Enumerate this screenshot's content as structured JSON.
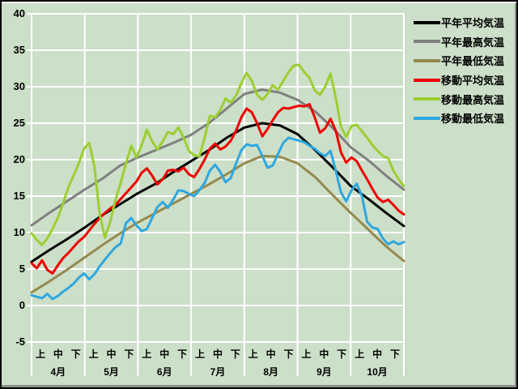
{
  "chart": {
    "background_color": "#CCDFC8",
    "grid_color": "#FFFFFF",
    "y_axis": {
      "tick_labels": [
        "40",
        "35",
        "30",
        "25",
        "20",
        "15",
        "10",
        "5",
        "0",
        "-5"
      ]
    },
    "x_axis": {
      "period_labels": [
        "上",
        "中",
        "下"
      ],
      "month_labels": [
        "4月",
        "5月",
        "6月",
        "7月",
        "8月",
        "9月",
        "10月"
      ]
    }
  },
  "chart_data": {
    "type": "line",
    "title": "",
    "xlabel": "",
    "ylabel": "",
    "x_range": "4月上旬〜10月下旬 (Apr 1 – Oct 31)",
    "ylim": [
      -5,
      40
    ],
    "y_step": 5,
    "grid": "on",
    "legend_position": "top-right",
    "series": [
      {
        "name": "平年平均気温",
        "color": "#000000",
        "style": "smooth",
        "values": [
          6.0,
          7.6,
          9.1,
          10.7,
          12.4,
          13.9,
          15.4,
          16.7,
          18.3,
          19.8,
          21.3,
          23.0,
          24.4,
          25.0,
          24.7,
          23.5,
          21.3,
          18.9,
          16.4,
          14.6,
          12.7,
          10.9
        ]
      },
      {
        "name": "平年最高気温",
        "color": "#808080",
        "style": "smooth",
        "values": [
          11.0,
          12.7,
          14.3,
          15.9,
          17.4,
          19.2,
          20.3,
          21.3,
          22.3,
          23.4,
          25.0,
          27.0,
          29.0,
          29.6,
          29.2,
          28.2,
          26.6,
          24.3,
          21.7,
          19.9,
          17.8,
          15.9
        ]
      },
      {
        "name": "平年最低気温",
        "color": "#95894F",
        "style": "smooth",
        "values": [
          1.8,
          3.3,
          4.9,
          6.6,
          8.3,
          9.9,
          11.4,
          12.7,
          14.0,
          15.3,
          16.6,
          18.0,
          19.5,
          20.5,
          20.4,
          19.5,
          17.6,
          15.1,
          12.7,
          10.4,
          8.1,
          6.1
        ]
      },
      {
        "name": "移動平均気温",
        "color": "#EE0000",
        "style": "daily",
        "values": [
          5.8,
          5.1,
          6.2,
          4.9,
          4.4,
          5.5,
          6.5,
          7.2,
          8.0,
          8.8,
          9.4,
          10.3,
          11.2,
          12.0,
          12.7,
          13.3,
          13.8,
          14.6,
          15.4,
          16.2,
          17.0,
          18.2,
          18.8,
          17.8,
          16.6,
          17.3,
          18.5,
          18.6,
          18.4,
          18.9,
          18.0,
          17.6,
          18.7,
          20.0,
          21.5,
          22.2,
          21.4,
          21.8,
          22.6,
          24.0,
          25.8,
          27.0,
          26.5,
          25.0,
          23.2,
          24.2,
          25.4,
          26.5,
          27.1,
          27.0,
          27.2,
          27.4,
          27.3,
          27.6,
          25.8,
          23.7,
          24.3,
          25.6,
          24.0,
          21.0,
          19.6,
          20.3,
          19.8,
          18.5,
          17.3,
          16.0,
          14.8,
          14.2,
          14.5,
          13.8,
          13.0,
          12.5
        ]
      },
      {
        "name": "移動最高気温",
        "color": "#9CCE32",
        "style": "daily",
        "values": [
          9.9,
          9.0,
          8.3,
          9.2,
          10.5,
          12.0,
          14.0,
          16.2,
          17.8,
          19.5,
          21.5,
          22.3,
          19.0,
          12.5,
          9.3,
          11.5,
          14.5,
          16.8,
          19.5,
          21.9,
          20.3,
          22.0,
          24.1,
          22.5,
          21.4,
          22.5,
          23.8,
          23.5,
          24.4,
          23.0,
          21.2,
          20.6,
          20.4,
          23.0,
          26.0,
          25.8,
          26.8,
          28.4,
          27.8,
          28.8,
          30.5,
          31.9,
          30.8,
          28.9,
          28.2,
          29.0,
          30.2,
          29.6,
          30.8,
          32.0,
          32.9,
          33.0,
          32.0,
          31.2,
          29.5,
          28.9,
          30.0,
          31.8,
          28.5,
          24.5,
          23.1,
          24.6,
          24.8,
          23.9,
          23.0,
          22.0,
          21.2,
          20.5,
          20.2,
          18.5,
          17.3,
          16.4
        ]
      },
      {
        "name": "移動最低気温",
        "color": "#2EA7E0",
        "style": "daily",
        "values": [
          1.4,
          1.2,
          1.0,
          1.6,
          0.9,
          1.3,
          1.9,
          2.4,
          3.0,
          3.8,
          4.4,
          3.6,
          4.3,
          5.4,
          6.3,
          7.2,
          8.0,
          8.5,
          11.3,
          12.0,
          11.0,
          10.2,
          10.5,
          12.0,
          13.5,
          14.2,
          13.4,
          14.5,
          15.8,
          15.7,
          15.3,
          15.0,
          15.8,
          16.8,
          18.5,
          19.3,
          18.3,
          16.9,
          17.5,
          19.5,
          21.3,
          22.1,
          21.9,
          22.0,
          20.5,
          18.9,
          19.2,
          20.8,
          22.3,
          23.0,
          22.8,
          22.6,
          22.4,
          21.9,
          21.5,
          20.9,
          20.5,
          21.2,
          18.5,
          15.5,
          14.3,
          15.8,
          16.7,
          15.0,
          11.5,
          10.7,
          10.5,
          9.2,
          8.4,
          8.8,
          8.4,
          8.7
        ]
      }
    ]
  }
}
